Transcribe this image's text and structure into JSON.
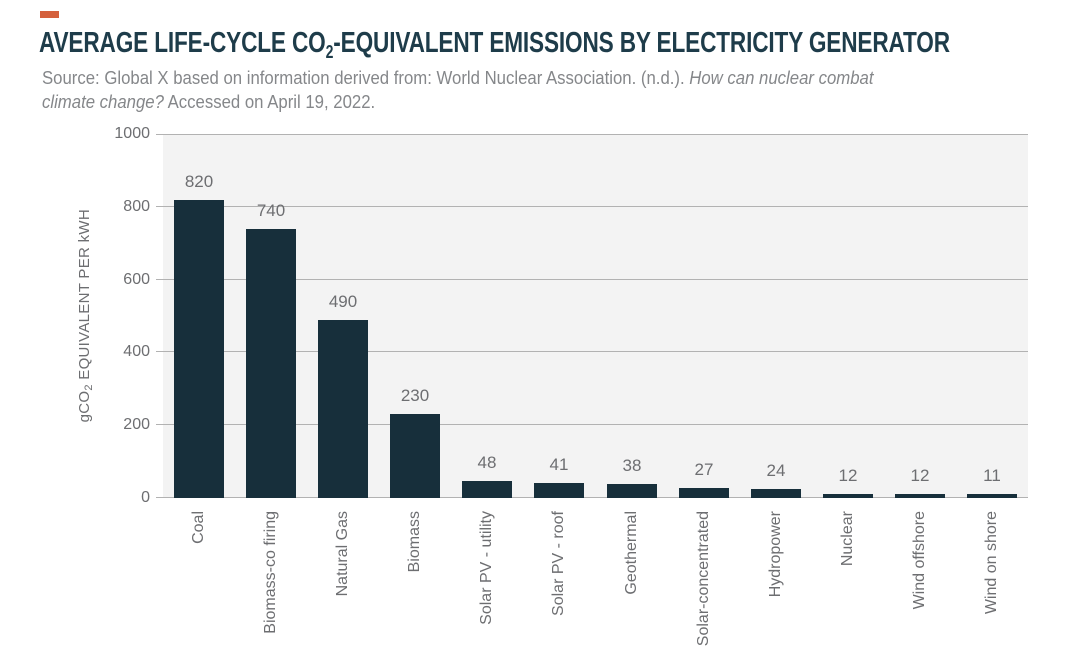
{
  "page": {
    "background": "#ffffff",
    "accent_color": "#d4603c"
  },
  "header": {
    "title": {
      "pre": "AVERAGE LIFE-CYCLE CO",
      "sub": "2",
      "post": "-EQUIVALENT EMISSIONS BY ELECTRICITY GENERATOR"
    },
    "title_color": "#1e3c4a",
    "source": {
      "line1_regular": "Source: Global X based on information derived from: World Nuclear Association. (n.d.). ",
      "line1_italic": "How can nuclear combat",
      "line2_italic": "climate change?",
      "line2_regular": " Accessed on April 19, 2022.",
      "color": "#85878a"
    }
  },
  "chart_data": {
    "type": "bar",
    "categories": [
      "Coal",
      "Biomass-co firing",
      "Natural Gas",
      "Biomass",
      "Solar PV - utility",
      "Solar PV - roof",
      "Geothermal",
      "Solar-concentrated",
      "Hydropower",
      "Nuclear",
      "Wind offshore",
      "Wind on shore"
    ],
    "values": [
      820,
      740,
      490,
      230,
      48,
      41,
      38,
      27,
      24,
      12,
      12,
      11
    ],
    "title": "",
    "xlabel": "",
    "ylabel": {
      "pre": "gCO",
      "sub": "2",
      "post": " EQUIVALENT PER kWH"
    },
    "yticks": [
      0,
      200,
      400,
      600,
      800,
      1000
    ],
    "ylim": [
      0,
      1000
    ],
    "grid": true,
    "legend": false,
    "value_labels_shown": true,
    "x_tick_rotation_degrees": 90,
    "bar_color": "#172f3b",
    "plot_background": "#f3f3f3",
    "gridline_color": "#b2b2b2",
    "tick_label_color": "#6d6e71",
    "value_label_color": "#6d6e71"
  }
}
